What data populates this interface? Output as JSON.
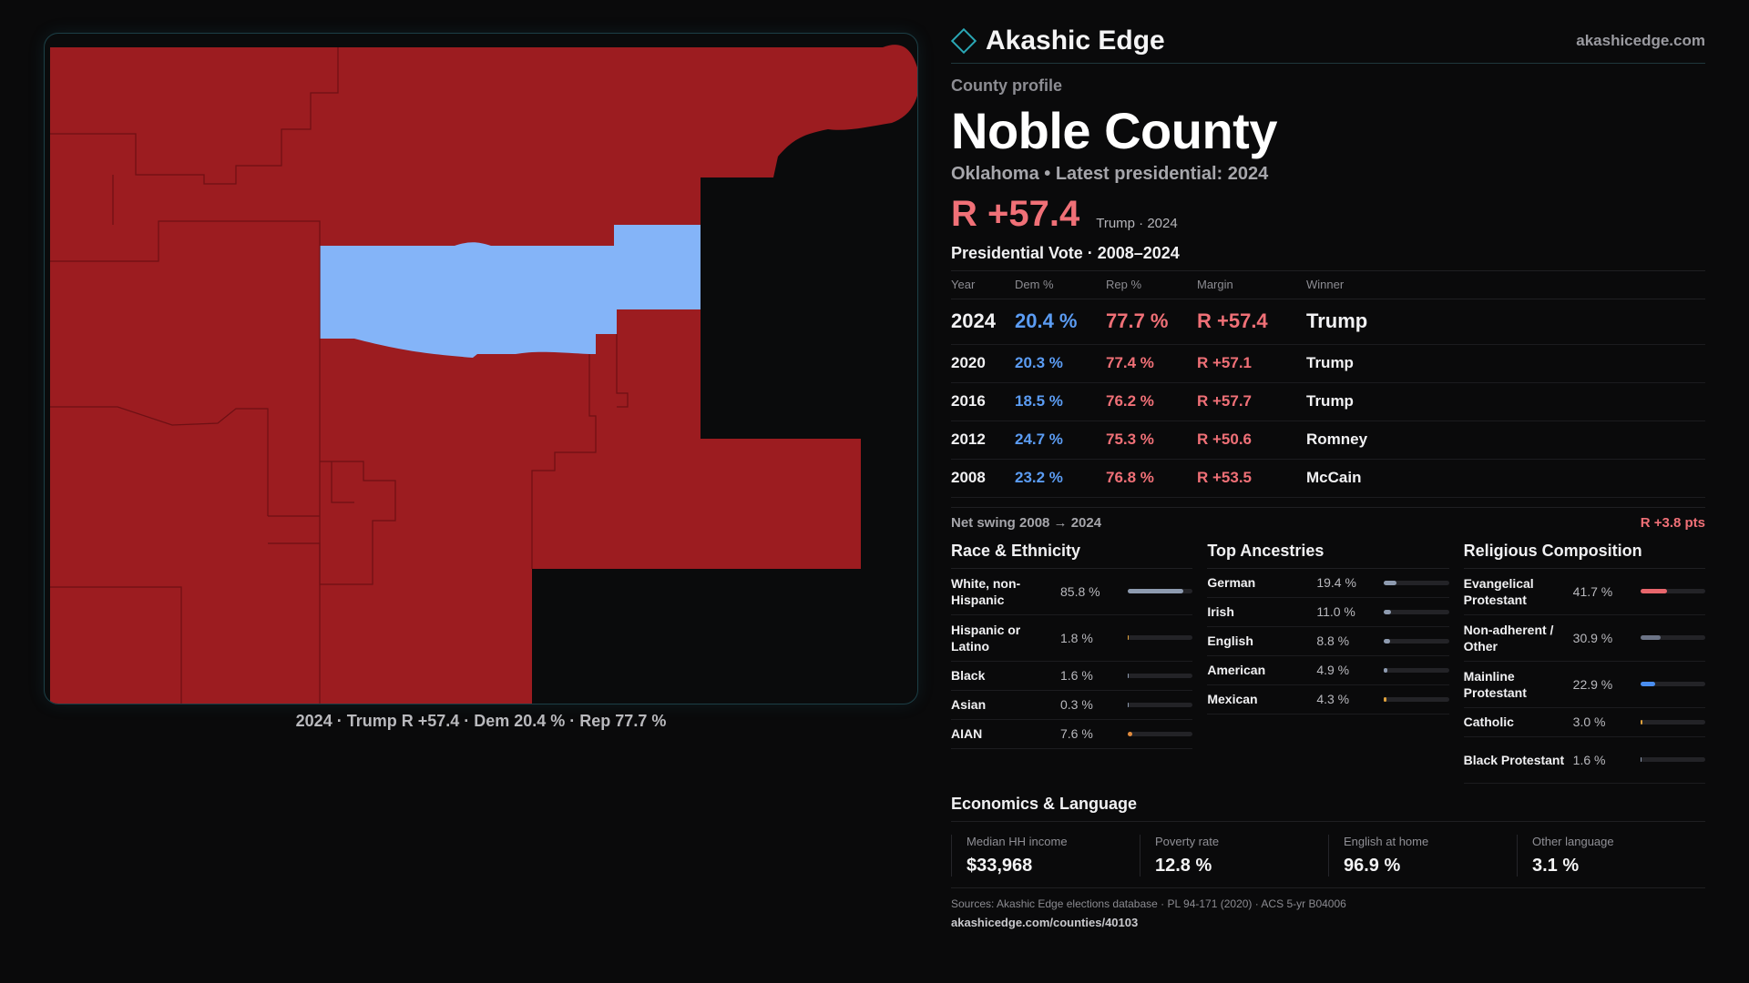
{
  "map": {
    "caption": "2024 · Trump R +57.4 · Dem 20.4 % · Rep 77.7 %",
    "colors": {
      "rep": "#9c1c20",
      "dem": "#84b4f8",
      "border": "#6e1014"
    }
  },
  "brand": {
    "name": "Akashic Edge",
    "url": "akashicedge.com"
  },
  "profile": {
    "kicker": "County profile",
    "title": "Noble County",
    "subtitle": "Oklahoma • Latest presidential: 2024",
    "margin": "R +57.4",
    "margin_note": "Trump · 2024"
  },
  "votes": {
    "title": "Presidential Vote · 2008–2024",
    "headers": {
      "year": "Year",
      "dem": "Dem %",
      "rep": "Rep %",
      "margin": "Margin",
      "winner": "Winner"
    },
    "rows": [
      {
        "year": "2024",
        "dem": "20.4 %",
        "rep": "77.7 %",
        "margin": "R +57.4",
        "winner": "Trump"
      },
      {
        "year": "2020",
        "dem": "20.3 %",
        "rep": "77.4 %",
        "margin": "R +57.1",
        "winner": "Trump"
      },
      {
        "year": "2016",
        "dem": "18.5 %",
        "rep": "76.2 %",
        "margin": "R +57.7",
        "winner": "Trump"
      },
      {
        "year": "2012",
        "dem": "24.7 %",
        "rep": "75.3 %",
        "margin": "R +50.6",
        "winner": "Romney"
      },
      {
        "year": "2008",
        "dem": "23.2 %",
        "rep": "76.8 %",
        "margin": "R +53.5",
        "winner": "McCain"
      }
    ],
    "swing_label": "Net swing 2008 → 2024",
    "swing_value": "R +3.8 pts"
  },
  "race": {
    "title": "Race & Ethnicity",
    "items": [
      {
        "label": "White, non-Hispanic",
        "value": "85.8 %",
        "pct": 85.8,
        "color": "#8e9bb0"
      },
      {
        "label": "Hispanic or Latino",
        "value": "1.8 %",
        "pct": 1.8,
        "color": "#e0a23c"
      },
      {
        "label": "Black",
        "value": "1.6 %",
        "pct": 1.6,
        "color": "#8e9bb0"
      },
      {
        "label": "Asian",
        "value": "0.3 %",
        "pct": 0.3,
        "color": "#8e9bb0"
      },
      {
        "label": "AIAN",
        "value": "7.6 %",
        "pct": 7.6,
        "color": "#e08a3c"
      }
    ]
  },
  "ancestry": {
    "title": "Top Ancestries",
    "items": [
      {
        "label": "German",
        "value": "19.4 %",
        "pct": 19.4,
        "color": "#8e9bb0"
      },
      {
        "label": "Irish",
        "value": "11.0 %",
        "pct": 11.0,
        "color": "#8e9bb0"
      },
      {
        "label": "English",
        "value": "8.8 %",
        "pct": 8.8,
        "color": "#8e9bb0"
      },
      {
        "label": "American",
        "value": "4.9 %",
        "pct": 4.9,
        "color": "#8e9bb0"
      },
      {
        "label": "Mexican",
        "value": "4.3 %",
        "pct": 4.3,
        "color": "#e0a23c"
      }
    ]
  },
  "religion": {
    "title": "Religious Composition",
    "items": [
      {
        "label": "Evangelical Protestant",
        "value": "41.7 %",
        "pct": 41.7,
        "color": "#e8666c"
      },
      {
        "label": "Non-adherent / Other",
        "value": "30.9 %",
        "pct": 30.9,
        "color": "#6c7486"
      },
      {
        "label": "Mainline Protestant",
        "value": "22.9 %",
        "pct": 22.9,
        "color": "#4a8ef0"
      },
      {
        "label": "Catholic",
        "value": "3.0 %",
        "pct": 3.0,
        "color": "#e0a23c"
      },
      {
        "label": "Black Protestant",
        "value": "1.6 %",
        "pct": 1.6,
        "color": "#8e9bb0"
      }
    ]
  },
  "econ": {
    "title": "Economics & Language",
    "items": [
      {
        "label": "Median HH income",
        "value": "$33,968"
      },
      {
        "label": "Poverty rate",
        "value": "12.8 %"
      },
      {
        "label": "English at home",
        "value": "96.9 %"
      },
      {
        "label": "Other language",
        "value": "3.1 %"
      }
    ]
  },
  "sources": {
    "text": "Sources: Akashic Edge elections database · PL 94-171 (2020) · ACS 5-yr B04006",
    "url": "akashicedge.com/counties/40103"
  }
}
